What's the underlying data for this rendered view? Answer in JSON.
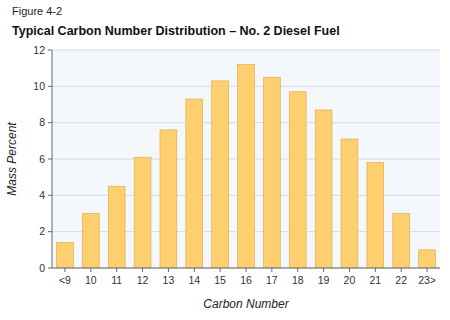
{
  "chart_data": {
    "type": "bar",
    "title": "Typical Carbon Number Distribution – No. 2 Diesel Fuel",
    "annotations": [
      "Figure 4-2"
    ],
    "categories": [
      "<9",
      "10",
      "11",
      "12",
      "13",
      "14",
      "15",
      "16",
      "17",
      "18",
      "19",
      "20",
      "21",
      "22",
      "23>"
    ],
    "values": [
      1.4,
      3.0,
      4.5,
      6.1,
      7.6,
      9.3,
      10.3,
      11.2,
      10.5,
      9.7,
      8.7,
      7.1,
      5.8,
      3.0,
      1.0
    ],
    "color": "#FDCF6F",
    "x_label": "Carbon Number",
    "y_label": "Mass Percent",
    "ylim": [
      0,
      12
    ],
    "yticks": [
      0,
      2,
      4,
      6,
      8,
      10,
      12
    ],
    "grid": true
  }
}
